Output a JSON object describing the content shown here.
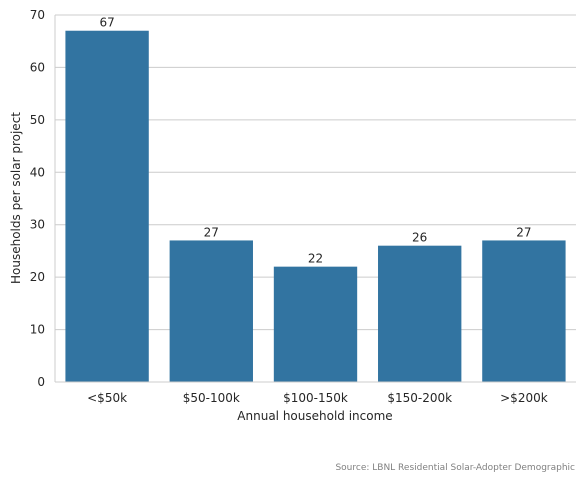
{
  "chart_data": {
    "type": "bar",
    "categories": [
      "<$50k",
      "$50-100k",
      "$100-150k",
      "$150-200k",
      ">$200k"
    ],
    "values": [
      67,
      27,
      22,
      26,
      27
    ],
    "data_labels": [
      "67",
      "27",
      "22",
      "26",
      "27"
    ],
    "xlabel": "Annual household income",
    "ylabel": "Households per solar project",
    "ylim": [
      0,
      70
    ],
    "yticks": [
      0,
      10,
      20,
      30,
      40,
      50,
      60,
      70
    ],
    "ytick_labels": [
      "0",
      "10",
      "20",
      "30",
      "40",
      "50",
      "60",
      "70"
    ],
    "grid": "horizontal",
    "bar_color": "#3274a1",
    "grid_color": "#cccccc",
    "axis_color": "#cccccc",
    "text_color": "#262626"
  },
  "footer": {
    "source": "Source: LBNL Residential Solar-Adopter Demographic"
  }
}
